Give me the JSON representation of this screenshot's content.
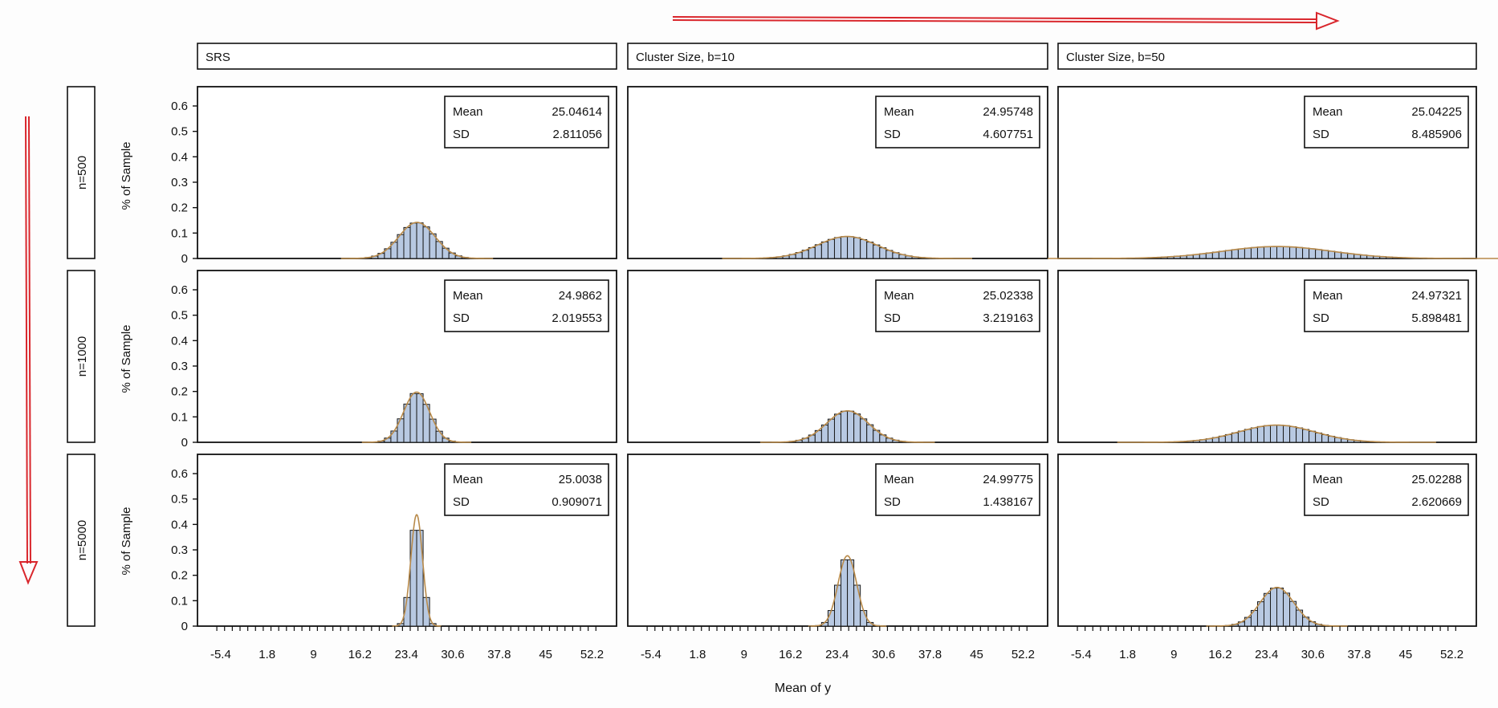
{
  "chart_data": {
    "type": "bar",
    "kind": "histogram-panel-grid",
    "xlabel": "Mean of y",
    "ylabel": "% of Sample",
    "xlim": [
      -9,
      56
    ],
    "ylim": [
      0,
      0.6
    ],
    "xticks": [
      "-5.4",
      "1.8",
      "9",
      "16.2",
      "23.4",
      "30.6",
      "37.8",
      "45",
      "52.2"
    ],
    "yticks": [
      "0",
      "0.1",
      "0.2",
      "0.3",
      "0.4",
      "0.5",
      "0.6"
    ],
    "stat_labels": {
      "mean": "Mean",
      "sd": "SD"
    },
    "columns": [
      "SRS",
      "Cluster Size, b=10",
      "Cluster Size, b=50"
    ],
    "rows": [
      "n=500",
      "n=1000",
      "n=5000"
    ],
    "panels": [
      [
        {
          "mean": "25.04614",
          "sd": "2.811056",
          "mu": 25.05,
          "sigma": 2.81
        },
        {
          "mean": "24.95748",
          "sd": "4.607751",
          "mu": 24.96,
          "sigma": 4.61
        },
        {
          "mean": "25.04225",
          "sd": "8.485906",
          "mu": 25.04,
          "sigma": 8.49
        }
      ],
      [
        {
          "mean": "24.9862",
          "sd": "2.019553",
          "mu": 24.99,
          "sigma": 2.02
        },
        {
          "mean": "25.02338",
          "sd": "3.219163",
          "mu": 25.02,
          "sigma": 3.22
        },
        {
          "mean": "24.97321",
          "sd": "5.898481",
          "mu": 24.97,
          "sigma": 5.9
        }
      ],
      [
        {
          "mean": "25.0038",
          "sd": "0.909071",
          "mu": 25.0,
          "sigma": 0.91
        },
        {
          "mean": "24.99775",
          "sd": "1.438167",
          "mu": 25.0,
          "sigma": 1.44
        },
        {
          "mean": "25.02288",
          "sd": "2.620669",
          "mu": 25.02,
          "sigma": 2.62
        }
      ]
    ],
    "bin_width": 1.0
  },
  "colors": {
    "bar_fill": "#b8c9e2",
    "bar_stroke": "#1a1a1a",
    "density_line": "#b88a4a",
    "arrow": "#d9262c",
    "frame": "#111111"
  }
}
